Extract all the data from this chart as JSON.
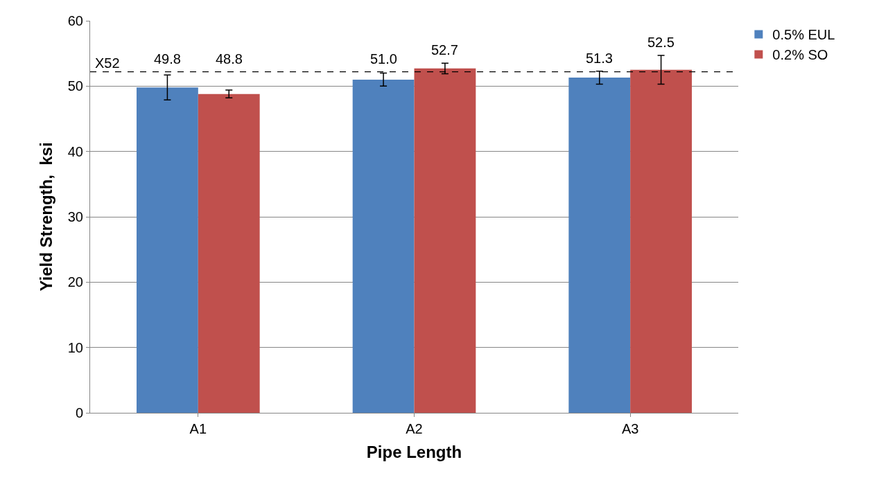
{
  "chart_data": {
    "type": "bar",
    "xlabel": "Pipe Length",
    "ylabel": "Yield Strength,  ksi",
    "categories": [
      "A1",
      "A2",
      "A3"
    ],
    "series": [
      {
        "name": "0.5% EUL",
        "color": "#4f81bd",
        "values": [
          49.8,
          51.0,
          51.3
        ],
        "value_labels": [
          "49.8",
          "51.0",
          "51.3"
        ],
        "errors": [
          1.9,
          1.0,
          1.0
        ]
      },
      {
        "name": "0.2% SO",
        "color": "#c0504d",
        "values": [
          48.8,
          52.7,
          52.5
        ],
        "value_labels": [
          "48.8",
          "52.7",
          "52.5"
        ],
        "errors": [
          0.6,
          0.8,
          2.2
        ]
      }
    ],
    "ylim": [
      0,
      60
    ],
    "yticks": [
      0,
      10,
      20,
      30,
      40,
      50,
      60
    ],
    "grid": "y",
    "legend": "top right",
    "ref_lines": [
      {
        "axis": "y",
        "value": 52.2,
        "label": "X52",
        "color": "#000000",
        "line_style": "dashed"
      }
    ]
  }
}
